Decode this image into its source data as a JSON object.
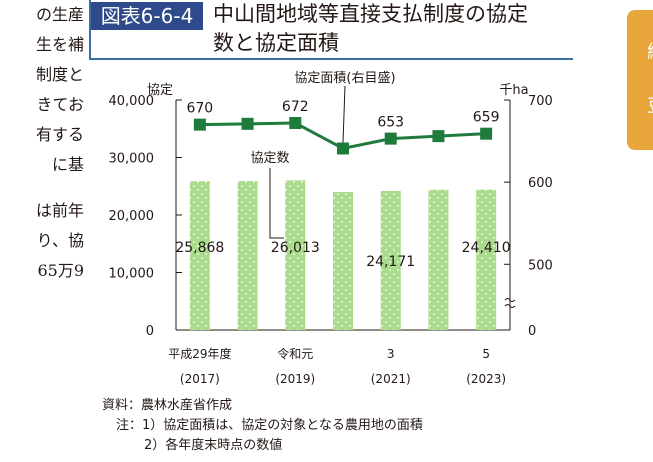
{
  "left_text": [
    "の生産",
    "生を補",
    "制度と",
    "きてお",
    "有する",
    "に基",
    "は前年",
    "り、協",
    "65万9"
  ],
  "figure": {
    "label": "図表6-6-4",
    "title_line1": "中山間地域等直接支払制度の協定",
    "title_line2": "数と協定面積"
  },
  "side_tab": [
    "緑",
    "豆"
  ],
  "chart_data": {
    "type": "bar+line",
    "x": [
      "平成29年度",
      "",
      "令和元",
      "",
      "3",
      "",
      "5"
    ],
    "x_sub": [
      "(2017)",
      "",
      "(2019)",
      "",
      "(2021)",
      "",
      "(2023)"
    ],
    "bar_series": {
      "name": "協定数",
      "values": [
        25868,
        25900,
        26013,
        24000,
        24171,
        24400,
        24410
      ],
      "labels": [
        "25,868",
        "",
        "26,013",
        "",
        "24,171",
        "",
        "24,410"
      ],
      "color": "#a9dc8a"
    },
    "line_series": {
      "name": "協定面積(右目盛)",
      "values": [
        670,
        671,
        672,
        641,
        653,
        656,
        659
      ],
      "labels": [
        "670",
        "",
        "672",
        "",
        "653",
        "",
        "659"
      ],
      "color": "#1e7b3c"
    },
    "y_left": {
      "unit": "協定",
      "ticks": [
        0,
        10000,
        20000,
        30000,
        40000
      ],
      "tick_labels": [
        "0",
        "10,000",
        "20,000",
        "30,000",
        "40,000"
      ],
      "range": [
        0,
        40000
      ]
    },
    "y_right": {
      "unit": "千ha",
      "ticks": [
        0,
        500,
        600,
        700
      ],
      "tick_labels": [
        "0",
        "500",
        "600",
        "700"
      ],
      "range_broken": [
        420,
        700
      ]
    }
  },
  "notes": {
    "source": "資料：農林水産省作成",
    "note1": "注：1）協定面積は、協定の対象となる農用地の面積",
    "note2": "2）各年度末時点の数値"
  }
}
